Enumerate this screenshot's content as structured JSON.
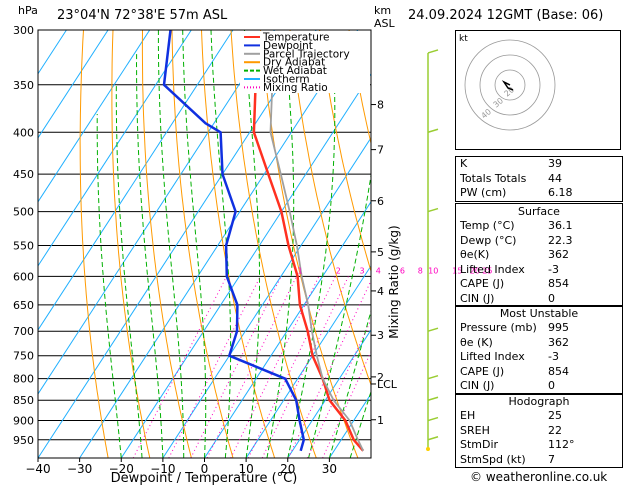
{
  "header": {
    "hpa_label": "hPa",
    "station": "23°04'N 72°38'E 57m ASL",
    "km_label": "km",
    "asl_label": "ASL",
    "datetime": "24.09.2024 12GMT (Base: 06)",
    "copyright": "© weatheronline.co.uk"
  },
  "colors": {
    "temperature": "#ff3020",
    "dewpoint": "#1030e0",
    "parcel": "#a0a0a0",
    "dry_adiabat": "#ff9a00",
    "wet_adiabat": "#00b000",
    "isotherm": "#20b0ff",
    "mixing_ratio": "#ff00c0"
  },
  "chart_data": {
    "type": "line",
    "title": "",
    "xlabel": "Dewpoint / Temperature (°C)",
    "ylabel": "Mixing Ratio (g/kg)",
    "x_ticks": [
      -40,
      -30,
      -20,
      -10,
      0,
      10,
      20,
      30
    ],
    "xlim": [
      -40,
      40
    ],
    "pressure_levels": [
      300,
      350,
      400,
      450,
      500,
      550,
      600,
      650,
      700,
      750,
      800,
      850,
      900,
      950
    ],
    "km_ticks": [
      {
        "label": "8",
        "p": 370
      },
      {
        "label": "7",
        "p": 420
      },
      {
        "label": "6",
        "p": 485
      },
      {
        "label": "5",
        "p": 560
      },
      {
        "label": "4",
        "p": 625
      },
      {
        "label": "3",
        "p": 708
      },
      {
        "label": "2",
        "p": 796
      },
      {
        "label": "LCL",
        "p": 812
      },
      {
        "label": "1",
        "p": 898
      }
    ],
    "mixing_ratio_labels": [
      {
        "label": "1",
        "t": -5.4
      },
      {
        "label": "2",
        "t": 3.8
      },
      {
        "label": "3",
        "t": 9.5
      },
      {
        "label": "4",
        "t": 13.4
      },
      {
        "label": "6",
        "t": 19.2
      },
      {
        "label": "8",
        "t": 23.5
      },
      {
        "label": "10",
        "t": 26.6
      },
      {
        "label": "15",
        "t": 32.4
      },
      {
        "label": "20",
        "t": 36.6
      },
      {
        "label": "25",
        "t": 39.6
      }
    ],
    "legend": [
      "Temperature",
      "Dewpoint",
      "Parcel Trajectory",
      "Dry Adiabat",
      "Wet Adiabat",
      "Isotherm",
      "Mixing Ratio"
    ],
    "legend_placement": "top-right",
    "series": [
      {
        "name": "Temperature",
        "points": [
          [
            -46,
            350
          ],
          [
            -39,
            400
          ],
          [
            -29,
            450
          ],
          [
            -20,
            500
          ],
          [
            -13,
            550
          ],
          [
            -6,
            600
          ],
          [
            -1,
            650
          ],
          [
            5,
            700
          ],
          [
            10,
            750
          ],
          [
            16,
            800
          ],
          [
            21,
            850
          ],
          [
            28,
            900
          ],
          [
            33,
            950
          ],
          [
            37,
            980
          ]
        ]
      },
      {
        "name": "Dewpoint",
        "points": [
          [
            -75,
            300
          ],
          [
            -68,
            350
          ],
          [
            -52,
            390
          ],
          [
            -47,
            400
          ],
          [
            -40,
            450
          ],
          [
            -31,
            500
          ],
          [
            -28,
            550
          ],
          [
            -23,
            600
          ],
          [
            -16,
            650
          ],
          [
            -12,
            700
          ],
          [
            -10,
            750
          ],
          [
            7,
            800
          ],
          [
            13,
            850
          ],
          [
            17,
            900
          ],
          [
            21,
            950
          ],
          [
            22,
            980
          ]
        ]
      },
      {
        "name": "Parcel Trajectory",
        "points": [
          [
            -42,
            350
          ],
          [
            -35,
            400
          ],
          [
            -26,
            450
          ],
          [
            -18,
            500
          ],
          [
            -11,
            550
          ],
          [
            -5,
            600
          ],
          [
            1,
            650
          ],
          [
            6,
            700
          ],
          [
            11,
            750
          ],
          [
            16,
            800
          ],
          [
            22,
            850
          ],
          [
            29,
            900
          ],
          [
            34,
            950
          ],
          [
            37,
            980
          ]
        ]
      }
    ]
  },
  "stats": {
    "rows": [
      {
        "k": "K",
        "v": "39"
      },
      {
        "k": "Totals Totals",
        "v": "44"
      },
      {
        "k": "PW (cm)",
        "v": "6.18"
      }
    ],
    "surface": {
      "title": "Surface",
      "rows": [
        {
          "k": "Temp (°C)",
          "v": "36.1"
        },
        {
          "k": "Dewp (°C)",
          "v": "22.3"
        },
        {
          "k": "θe(K)",
          "v": "362"
        },
        {
          "k": "Lifted Index",
          "v": "-3"
        },
        {
          "k": "CAPE (J)",
          "v": "854"
        },
        {
          "k": "CIN (J)",
          "v": "0"
        }
      ]
    },
    "most_unstable": {
      "title": "Most Unstable",
      "rows": [
        {
          "k": "Pressure (mb)",
          "v": "995"
        },
        {
          "k": "θe (K)",
          "v": "362"
        },
        {
          "k": "Lifted Index",
          "v": "-3"
        },
        {
          "k": "CAPE (J)",
          "v": "854"
        },
        {
          "k": "CIN (J)",
          "v": "0"
        }
      ]
    },
    "hodograph": {
      "title": "Hodograph",
      "rows": [
        {
          "k": "EH",
          "v": "25"
        },
        {
          "k": "SREH",
          "v": "22"
        },
        {
          "k": "StmDir",
          "v": "112°"
        },
        {
          "k": "StmSpd (kt)",
          "v": "7"
        }
      ]
    }
  },
  "hodo": {
    "label": "kt",
    "rings": [
      "40",
      "30",
      "20"
    ]
  }
}
